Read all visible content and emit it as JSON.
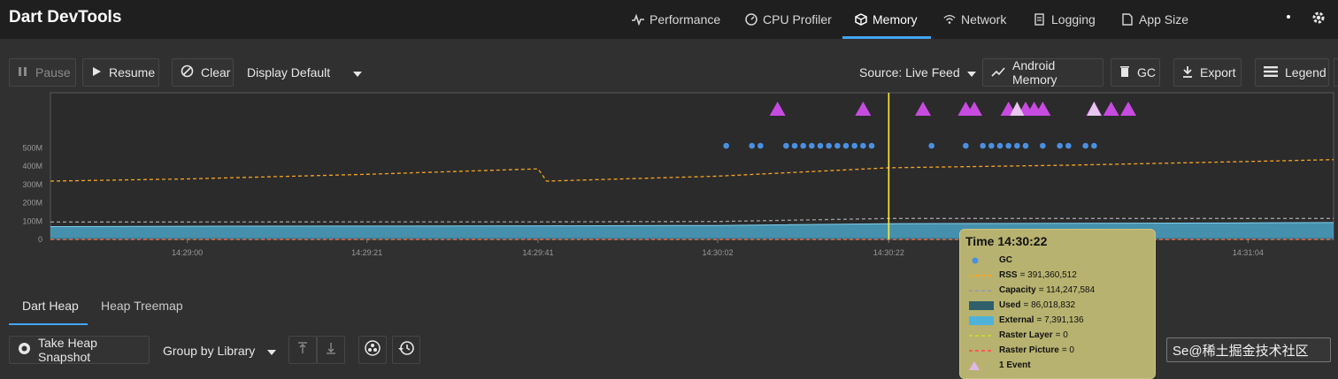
{
  "app": {
    "title": "Dart DevTools"
  },
  "nav": {
    "tabs": [
      {
        "label": "Performance",
        "icon": "pulse-icon"
      },
      {
        "label": "CPU Profiler",
        "icon": "gauge-icon"
      },
      {
        "label": "Memory",
        "icon": "cube-icon",
        "active": true
      },
      {
        "label": "Network",
        "icon": "wifi-icon"
      },
      {
        "label": "Logging",
        "icon": "logging-icon"
      },
      {
        "label": "App Size",
        "icon": "file-icon"
      }
    ]
  },
  "toolbar": {
    "pause": "Pause",
    "resume": "Resume",
    "clear": "Clear",
    "display": "Display Default",
    "source": "Source: Live Feed",
    "android_memory": "Android Memory",
    "gc": "GC",
    "export": "Export",
    "legend": "Legend"
  },
  "colors": {
    "accent": "#42a5f5",
    "rss": "#f5a623",
    "capacity": "#9e9e9e",
    "used": "#2f5f6b",
    "external": "#4fb3d9",
    "raster_layer": "#c6d63a",
    "raster_picture": "#f25c54",
    "gc_event": "#c74be0",
    "snapshot_dot": "#4a90e2",
    "tooltip_bg": "#b7b26f",
    "cursor": "#ffeb3b"
  },
  "chart_data": {
    "type": "area",
    "y_tick_labels": [
      "0",
      "100M",
      "200M",
      "300M",
      "400M",
      "500M"
    ],
    "x_tick_labels": [
      "14:29:00",
      "14:29:21",
      "14:29:41",
      "14:30:02",
      "14:30:22",
      "14:30:43",
      "14:31:04"
    ],
    "x": [
      "14:28:44",
      "14:29:00",
      "14:29:21",
      "14:29:41",
      "14:29:42",
      "14:30:02",
      "14:30:22",
      "14:30:43",
      "14:31:04",
      "14:31:14"
    ],
    "series": [
      {
        "name": "RSS",
        "style": "dashed",
        "values": [
          318,
          330,
          355,
          385,
          318,
          345,
          391,
          405,
          425,
          435
        ]
      },
      {
        "name": "Capacity",
        "style": "dashed",
        "values": [
          95,
          95,
          96,
          96,
          96,
          98,
          114,
          114,
          114,
          114
        ]
      },
      {
        "name": "Used",
        "style": "area",
        "values": [
          70,
          72,
          73,
          74,
          74,
          76,
          86,
          88,
          90,
          92
        ]
      },
      {
        "name": "External",
        "style": "area",
        "values": [
          7,
          7,
          7,
          7,
          7,
          7,
          7,
          7,
          7,
          7
        ]
      },
      {
        "name": "Raster Layer",
        "style": "dashed",
        "values": [
          0,
          0,
          0,
          0,
          0,
          0,
          0,
          0,
          0,
          0
        ]
      },
      {
        "name": "Raster Picture",
        "style": "dashed",
        "values": [
          0,
          0,
          0,
          0,
          0,
          0,
          0,
          0,
          0,
          0
        ]
      }
    ],
    "ylim": [
      0,
      800
    ],
    "x_range": [
      "14:28:44",
      "14:31:14"
    ],
    "selected_time": "14:30:22",
    "gc_events": [
      "14:30:09",
      "14:30:19",
      "14:30:26",
      "14:30:31",
      "14:30:32",
      "14:30:36",
      "14:30:38",
      "14:30:39",
      "14:30:40",
      "14:30:46",
      "14:30:48",
      "14:30:50"
    ],
    "event_markers": [
      "14:30:37",
      "14:30:46"
    ],
    "snapshots": [
      "14:30:03",
      "14:30:06",
      "14:30:07",
      "14:30:10",
      "14:30:11",
      "14:30:12",
      "14:30:13",
      "14:30:14",
      "14:30:15",
      "14:30:16",
      "14:30:17",
      "14:30:18",
      "14:30:19",
      "14:30:20",
      "14:30:27",
      "14:30:31",
      "14:30:33",
      "14:30:34",
      "14:30:35",
      "14:30:36",
      "14:30:37",
      "14:30:38",
      "14:30:40",
      "14:30:42",
      "14:30:43",
      "14:30:45",
      "14:30:46"
    ],
    "grid": false
  },
  "tooltip": {
    "title": "Time 14:30:22",
    "rows": [
      {
        "label": "GC",
        "value": "",
        "icon": "gc-icon"
      },
      {
        "label": "RSS",
        "value": "= 391,360,512"
      },
      {
        "label": "Capacity",
        "value": "= 114,247,584"
      },
      {
        "label": "Used",
        "value": "= 86,018,832"
      },
      {
        "label": "External",
        "value": "= 7,391,136"
      },
      {
        "label": "Raster Layer",
        "value": "= 0"
      },
      {
        "label": "Raster Picture",
        "value": "= 0"
      },
      {
        "label": "1 Event",
        "value": ""
      }
    ]
  },
  "bottom": {
    "tabs": [
      "Dart Heap",
      "Heap Treemap"
    ],
    "take_snapshot": "Take Heap Snapshot",
    "group_by": "Group by Library"
  },
  "watermark": {
    "text": "Se@稀土掘金技术社区"
  }
}
